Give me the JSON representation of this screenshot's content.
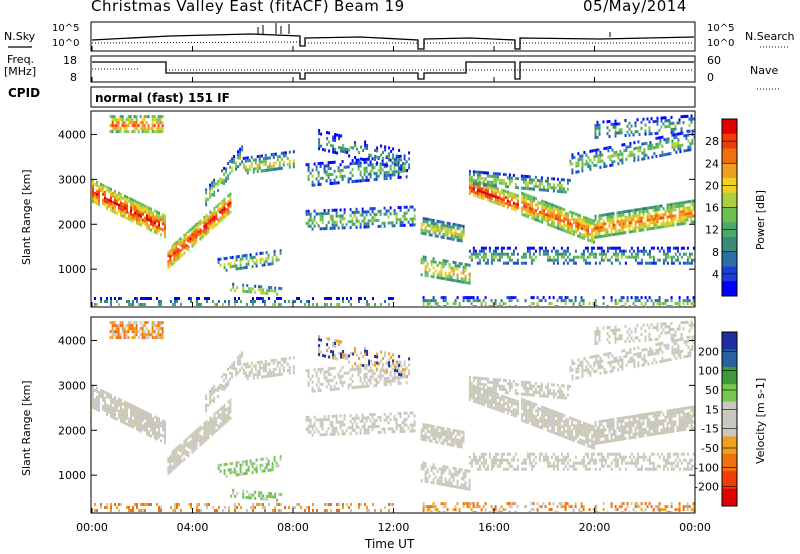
{
  "header": {
    "station": "Christmas Valley East (fitACF)",
    "beam": "Beam 19",
    "date": "05/May/2014",
    "mode": "normal (fast) 151 IF",
    "cpid_label": "CPID"
  },
  "panels": {
    "nsky_label": "N.Sky",
    "nsky_ticks": [
      "10^5",
      "10^0"
    ],
    "nsearch_label": "N.Search",
    "nsearch_ticks": [
      "10^5",
      "10^0"
    ],
    "freq_label": "Freq.",
    "freq_unit": "[MHz]",
    "freq_ticks": [
      "18",
      "8"
    ],
    "nave_label": "Nave",
    "nave_ticks": [
      "60",
      "0"
    ]
  },
  "chart_data": [
    {
      "type": "heatmap",
      "name": "power",
      "xlabel": "Time UT",
      "ylabel": "Slant Range [km]",
      "x_ticks": [
        "00:00",
        "04:00",
        "08:00",
        "12:00",
        "16:00",
        "20:00",
        "00:00"
      ],
      "x_range_hours": [
        0,
        24
      ],
      "y_ticks": [
        1000,
        2000,
        3000,
        4000
      ],
      "ylim": [
        180,
        4500
      ],
      "colorbar_label": "Power [dB]",
      "colorbar_ticks": [
        "28",
        "24",
        "20",
        "16",
        "12",
        "8",
        "4"
      ],
      "colorbar_colors": [
        "#0000ff",
        "#1a3fd6",
        "#2a6fa8",
        "#3a8a7a",
        "#4aa86a",
        "#6cc050",
        "#a8d040",
        "#f0d020",
        "#f0a020",
        "#f07010",
        "#f03c08",
        "#e00000"
      ],
      "colorbar_range": [
        0,
        30
      ]
    },
    {
      "type": "heatmap",
      "name": "velocity",
      "xlabel": "Time UT",
      "ylabel": "Slant Range [km]",
      "x_ticks": [
        "00:00",
        "04:00",
        "08:00",
        "12:00",
        "16:00",
        "20:00",
        "00:00"
      ],
      "x_range_hours": [
        0,
        24
      ],
      "y_ticks": [
        1000,
        2000,
        3000,
        4000
      ],
      "ylim": [
        180,
        4500
      ],
      "colorbar_label": "Velocity [m s-1]",
      "colorbar_ticks": [
        "200",
        "100",
        "50",
        "15",
        "-15",
        "-50",
        "-100",
        "-200"
      ],
      "colorbar_colors": [
        "#e00000",
        "#f03c08",
        "#f07010",
        "#f0a020",
        "#c8c8c0",
        "#c8c8c0",
        "#78c850",
        "#3c9a3c",
        "#2a5fa0",
        "#1f2ea0"
      ]
    }
  ]
}
